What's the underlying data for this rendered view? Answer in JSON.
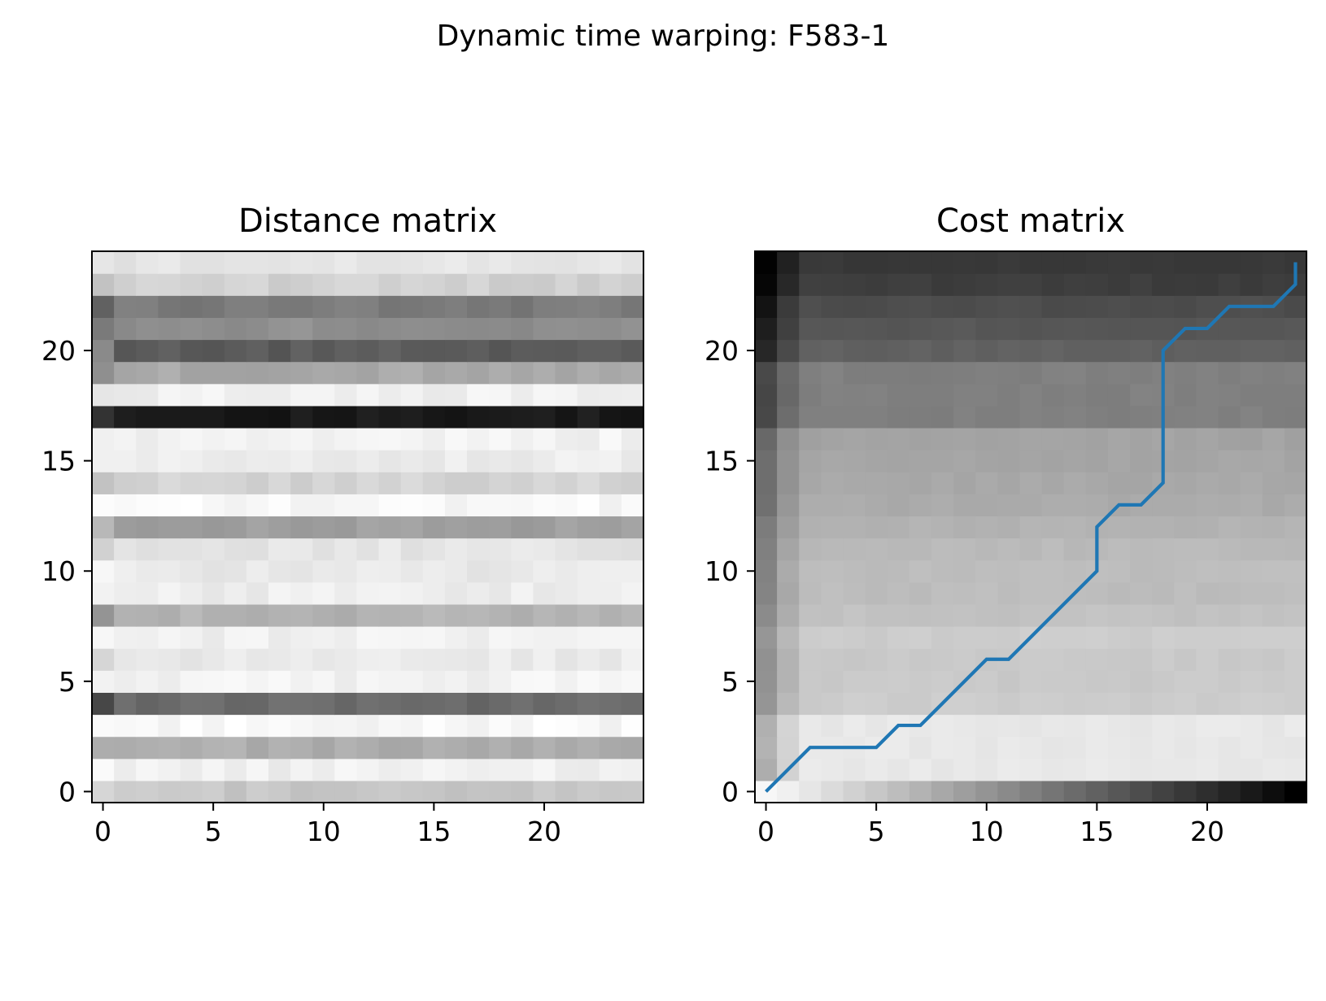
{
  "figure": {
    "title": "Dynamic time warping: F583-1"
  },
  "chart_data": [
    {
      "type": "heatmap",
      "title": "Distance matrix",
      "xlabel": "",
      "ylabel": "",
      "xlim": [
        -0.5,
        24.5
      ],
      "ylim": [
        -0.5,
        24.5
      ],
      "x_ticks": [
        0,
        5,
        10,
        15,
        20
      ],
      "y_ticks": [
        0,
        5,
        10,
        15,
        20
      ],
      "colormap": "gray_r",
      "grid": false,
      "row_shade": [
        0.22,
        0.06,
        0.32,
        0.03,
        0.58,
        0.05,
        0.08,
        0.06,
        0.3,
        0.07,
        0.09,
        0.1,
        0.38,
        0.03,
        0.17,
        0.07,
        0.05,
        0.9,
        0.06,
        0.34,
        0.64,
        0.44,
        0.52,
        0.18,
        0.1
      ],
      "row_first_col": [
        0.16,
        0.02,
        0.32,
        0.02,
        0.72,
        0.05,
        0.16,
        0.03,
        0.42,
        0.05,
        0.03,
        0.18,
        0.28,
        0.01,
        0.24,
        0.06,
        0.06,
        0.8,
        0.1,
        0.44,
        0.46,
        0.52,
        0.62,
        0.24,
        0.1
      ]
    },
    {
      "type": "heatmap",
      "title": "Cost matrix",
      "xlabel": "",
      "ylabel": "",
      "xlim": [
        -0.5,
        24.5
      ],
      "ylim": [
        -0.5,
        24.5
      ],
      "x_ticks": [
        0,
        5,
        10,
        15,
        20
      ],
      "y_ticks": [
        0,
        5,
        10,
        15,
        20
      ],
      "colormap": "gray_r",
      "grid": false,
      "row_shade": [
        0.03,
        0.09,
        0.09,
        0.09,
        0.2,
        0.21,
        0.21,
        0.2,
        0.24,
        0.26,
        0.26,
        0.27,
        0.3,
        0.33,
        0.34,
        0.35,
        0.36,
        0.5,
        0.5,
        0.5,
        0.62,
        0.66,
        0.7,
        0.76,
        0.78
      ],
      "bottom_row_ramp": [
        0.03,
        0.06,
        0.1,
        0.14,
        0.18,
        0.22,
        0.26,
        0.3,
        0.34,
        0.38,
        0.42,
        0.46,
        0.5,
        0.54,
        0.58,
        0.62,
        0.66,
        0.7,
        0.74,
        0.78,
        0.82,
        0.86,
        0.9,
        0.95,
        1.0
      ],
      "series": [
        {
          "type": "line",
          "color": "#1f77b4",
          "x": [
            0,
            1,
            2,
            3,
            4,
            5,
            6,
            7,
            8,
            9,
            10,
            11,
            12,
            13,
            14,
            15,
            15,
            16,
            17,
            18,
            18,
            19,
            20,
            21,
            22,
            23,
            24,
            24
          ],
          "y": [
            0,
            1,
            2,
            2,
            2,
            2,
            3,
            3,
            4,
            5,
            6,
            6,
            7,
            8,
            9,
            10,
            12,
            13,
            13,
            14,
            20,
            21,
            21,
            22,
            22,
            22,
            23,
            24
          ]
        }
      ]
    }
  ]
}
